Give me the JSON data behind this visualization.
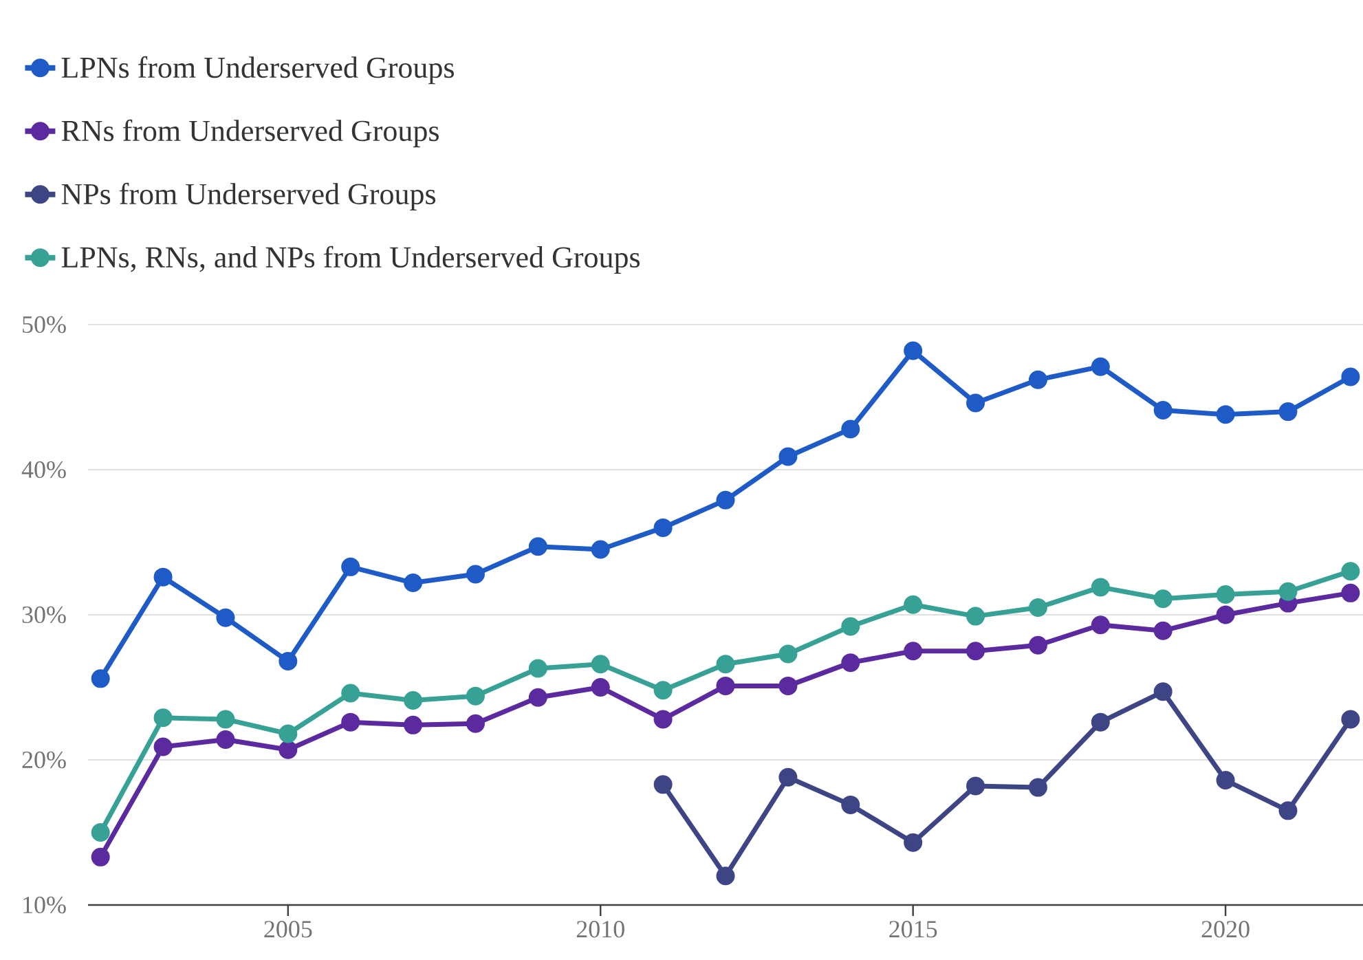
{
  "chart_data": {
    "type": "line",
    "x": [
      2002,
      2003,
      2004,
      2005,
      2006,
      2007,
      2008,
      2009,
      2010,
      2011,
      2012,
      2013,
      2014,
      2015,
      2016,
      2017,
      2018,
      2019,
      2020,
      2021,
      2022
    ],
    "series": [
      {
        "name": "LPNs from Underserved Groups",
        "color": "#1f5bc6",
        "values": [
          25.6,
          32.6,
          29.8,
          26.8,
          33.3,
          32.2,
          32.8,
          34.7,
          34.5,
          36.0,
          37.9,
          40.9,
          42.8,
          48.2,
          44.6,
          46.2,
          47.1,
          44.1,
          43.8,
          44.0,
          46.4
        ]
      },
      {
        "name": "RNs from Underserved Groups",
        "color": "#5b2a9e",
        "values": [
          13.3,
          20.9,
          21.4,
          20.7,
          22.6,
          22.4,
          22.5,
          24.3,
          25.0,
          22.8,
          25.1,
          25.1,
          26.7,
          27.5,
          27.5,
          27.9,
          29.3,
          28.9,
          30.0,
          30.8,
          31.5
        ]
      },
      {
        "name": "NPs from Underserved Groups",
        "color": "#3d4585",
        "values": [
          null,
          null,
          null,
          null,
          null,
          null,
          null,
          null,
          null,
          18.3,
          12.0,
          18.8,
          16.9,
          14.3,
          18.2,
          18.1,
          22.6,
          24.7,
          18.6,
          16.5,
          22.8
        ]
      },
      {
        "name": "LPNs, RNs, and NPs from Underserved Groups",
        "color": "#36a194",
        "values": [
          15.0,
          22.9,
          22.8,
          21.8,
          24.6,
          24.1,
          24.4,
          26.3,
          26.6,
          24.8,
          26.6,
          27.3,
          29.2,
          30.7,
          29.9,
          30.5,
          31.9,
          31.1,
          31.4,
          31.6,
          33.0
        ]
      }
    ],
    "xlim": [
      2001.8,
      2022.2
    ],
    "xticks": [
      2005,
      2010,
      2015,
      2020
    ],
    "ylim": [
      10,
      50
    ],
    "yticks": [
      {
        "value": 10,
        "label": "10%"
      },
      {
        "value": 20,
        "label": "20%"
      },
      {
        "value": 30,
        "label": "30%"
      },
      {
        "value": 40,
        "label": "40%"
      },
      {
        "value": 50,
        "label": "50%"
      }
    ],
    "grid": "y",
    "legend": "top left",
    "marker": "circle",
    "line_style": "solid"
  }
}
